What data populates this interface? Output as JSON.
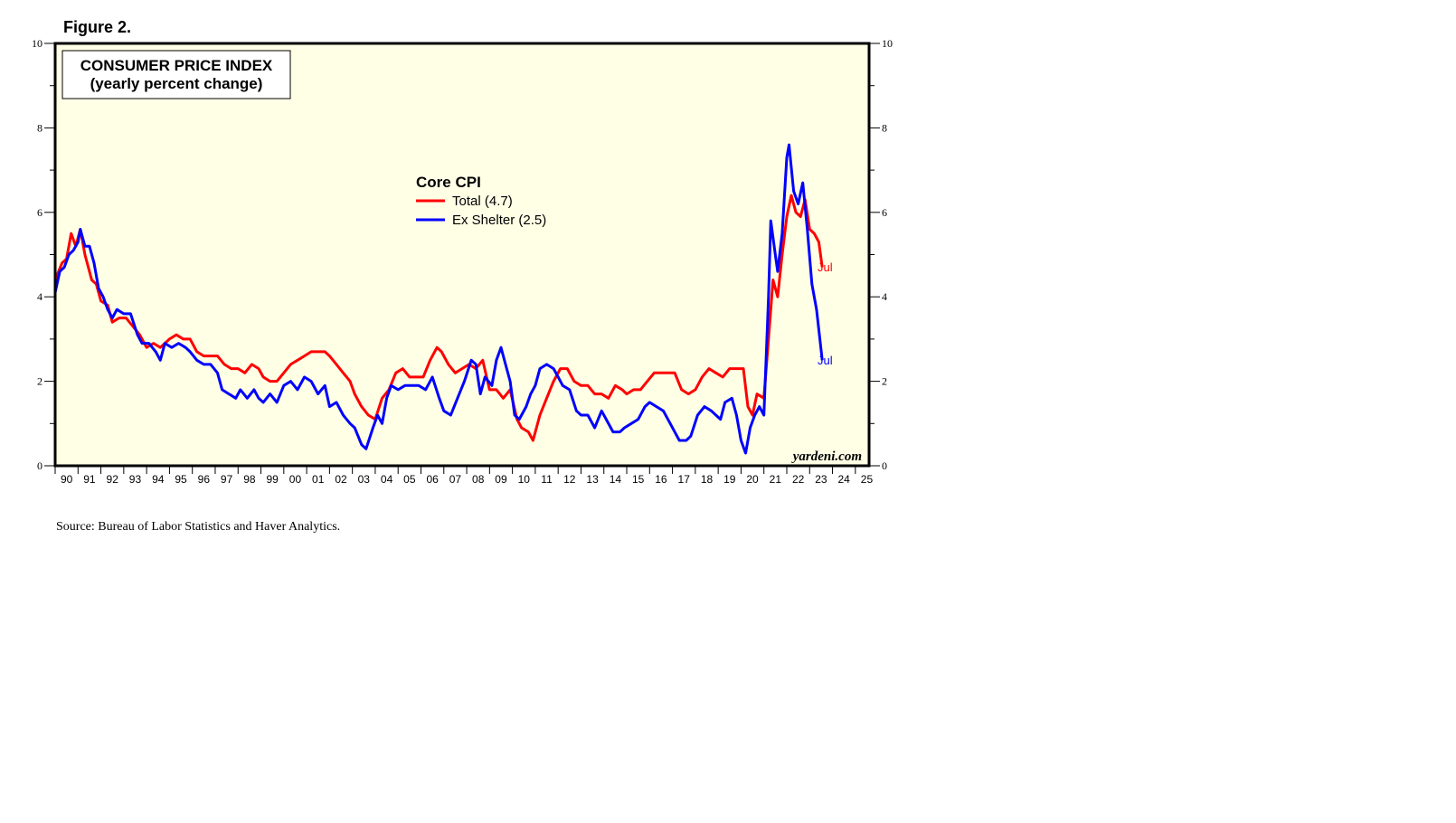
{
  "figure_label": "Figure 2.",
  "source": "Source: Bureau of Labor Statistics and Haver Analytics.",
  "watermark": "yardeni.com",
  "colors": {
    "plot_bg": "#ffffe6",
    "total": "#ff0000",
    "ex_shelter": "#0000ff"
  },
  "chart_data": {
    "type": "line",
    "title": "CONSUMER PRICE INDEX",
    "subtitle": "(yearly percent change)",
    "legend_title": "Core CPI",
    "legend_position": "top-center",
    "ylim": [
      0,
      10
    ],
    "y_ticks": [
      "0",
      "2",
      "4",
      "6",
      "8",
      "10"
    ],
    "xlim": [
      1990,
      2025.6
    ],
    "x_tick_labels": [
      "90",
      "91",
      "92",
      "93",
      "94",
      "95",
      "96",
      "97",
      "98",
      "99",
      "00",
      "01",
      "02",
      "03",
      "04",
      "05",
      "06",
      "07",
      "08",
      "09",
      "10",
      "11",
      "12",
      "13",
      "14",
      "15",
      "16",
      "17",
      "18",
      "19",
      "20",
      "21",
      "22",
      "23",
      "24",
      "25"
    ],
    "grid": false,
    "series": [
      {
        "name": "Total (4.7)",
        "end_label": "Jul",
        "color": "#ff0000",
        "points": [
          [
            1990.0,
            4.4
          ],
          [
            1990.3,
            4.8
          ],
          [
            1990.5,
            4.9
          ],
          [
            1990.7,
            5.5
          ],
          [
            1990.9,
            5.2
          ],
          [
            1991.1,
            5.6
          ],
          [
            1991.3,
            5.0
          ],
          [
            1991.6,
            4.4
          ],
          [
            1991.8,
            4.3
          ],
          [
            1992.0,
            3.9
          ],
          [
            1992.3,
            3.8
          ],
          [
            1992.5,
            3.4
          ],
          [
            1992.8,
            3.5
          ],
          [
            1993.1,
            3.5
          ],
          [
            1993.4,
            3.3
          ],
          [
            1993.7,
            3.1
          ],
          [
            1994.0,
            2.8
          ],
          [
            1994.3,
            2.9
          ],
          [
            1994.6,
            2.8
          ],
          [
            1994.8,
            2.9
          ],
          [
            1995.0,
            3.0
          ],
          [
            1995.3,
            3.1
          ],
          [
            1995.6,
            3.0
          ],
          [
            1995.9,
            3.0
          ],
          [
            1996.2,
            2.7
          ],
          [
            1996.5,
            2.6
          ],
          [
            1996.8,
            2.6
          ],
          [
            1997.1,
            2.6
          ],
          [
            1997.4,
            2.4
          ],
          [
            1997.7,
            2.3
          ],
          [
            1998.0,
            2.3
          ],
          [
            1998.3,
            2.2
          ],
          [
            1998.6,
            2.4
          ],
          [
            1998.9,
            2.3
          ],
          [
            1999.1,
            2.1
          ],
          [
            1999.4,
            2.0
          ],
          [
            1999.7,
            2.0
          ],
          [
            2000.0,
            2.2
          ],
          [
            2000.3,
            2.4
          ],
          [
            2000.6,
            2.5
          ],
          [
            2000.9,
            2.6
          ],
          [
            2001.2,
            2.7
          ],
          [
            2001.5,
            2.7
          ],
          [
            2001.8,
            2.7
          ],
          [
            2002.0,
            2.6
          ],
          [
            2002.3,
            2.4
          ],
          [
            2002.6,
            2.2
          ],
          [
            2002.9,
            2.0
          ],
          [
            2003.1,
            1.7
          ],
          [
            2003.4,
            1.4
          ],
          [
            2003.7,
            1.2
          ],
          [
            2004.0,
            1.1
          ],
          [
            2004.3,
            1.6
          ],
          [
            2004.6,
            1.8
          ],
          [
            2004.9,
            2.2
          ],
          [
            2005.2,
            2.3
          ],
          [
            2005.5,
            2.1
          ],
          [
            2005.8,
            2.1
          ],
          [
            2006.1,
            2.1
          ],
          [
            2006.4,
            2.5
          ],
          [
            2006.7,
            2.8
          ],
          [
            2006.9,
            2.7
          ],
          [
            2007.2,
            2.4
          ],
          [
            2007.5,
            2.2
          ],
          [
            2007.8,
            2.3
          ],
          [
            2008.1,
            2.4
          ],
          [
            2008.4,
            2.3
          ],
          [
            2008.7,
            2.5
          ],
          [
            2009.0,
            1.8
          ],
          [
            2009.3,
            1.8
          ],
          [
            2009.6,
            1.6
          ],
          [
            2009.9,
            1.8
          ],
          [
            2010.2,
            1.1
          ],
          [
            2010.4,
            0.9
          ],
          [
            2010.7,
            0.8
          ],
          [
            2010.9,
            0.6
          ],
          [
            2011.2,
            1.2
          ],
          [
            2011.5,
            1.6
          ],
          [
            2011.8,
            2.0
          ],
          [
            2012.1,
            2.3
          ],
          [
            2012.4,
            2.3
          ],
          [
            2012.7,
            2.0
          ],
          [
            2013.0,
            1.9
          ],
          [
            2013.3,
            1.9
          ],
          [
            2013.6,
            1.7
          ],
          [
            2013.9,
            1.7
          ],
          [
            2014.2,
            1.6
          ],
          [
            2014.5,
            1.9
          ],
          [
            2014.8,
            1.8
          ],
          [
            2015.0,
            1.7
          ],
          [
            2015.3,
            1.8
          ],
          [
            2015.6,
            1.8
          ],
          [
            2015.9,
            2.0
          ],
          [
            2016.2,
            2.2
          ],
          [
            2016.5,
            2.2
          ],
          [
            2016.8,
            2.2
          ],
          [
            2017.1,
            2.2
          ],
          [
            2017.4,
            1.8
          ],
          [
            2017.7,
            1.7
          ],
          [
            2018.0,
            1.8
          ],
          [
            2018.3,
            2.1
          ],
          [
            2018.6,
            2.3
          ],
          [
            2018.9,
            2.2
          ],
          [
            2019.2,
            2.1
          ],
          [
            2019.5,
            2.3
          ],
          [
            2019.8,
            2.3
          ],
          [
            2020.1,
            2.3
          ],
          [
            2020.3,
            1.4
          ],
          [
            2020.5,
            1.2
          ],
          [
            2020.7,
            1.7
          ],
          [
            2021.0,
            1.6
          ],
          [
            2021.2,
            3.0
          ],
          [
            2021.4,
            4.4
          ],
          [
            2021.6,
            4.0
          ],
          [
            2021.8,
            5.0
          ],
          [
            2022.0,
            5.9
          ],
          [
            2022.2,
            6.4
          ],
          [
            2022.4,
            6.0
          ],
          [
            2022.6,
            5.9
          ],
          [
            2022.8,
            6.3
          ],
          [
            2023.0,
            5.6
          ],
          [
            2023.2,
            5.5
          ],
          [
            2023.4,
            5.3
          ],
          [
            2023.55,
            4.7
          ]
        ]
      },
      {
        "name": "Ex Shelter (2.5)",
        "end_label": "Jul",
        "color": "#0000ff",
        "points": [
          [
            1990.0,
            4.1
          ],
          [
            1990.2,
            4.6
          ],
          [
            1990.4,
            4.7
          ],
          [
            1990.6,
            5.0
          ],
          [
            1990.8,
            5.1
          ],
          [
            1991.0,
            5.3
          ],
          [
            1991.1,
            5.6
          ],
          [
            1991.3,
            5.2
          ],
          [
            1991.5,
            5.2
          ],
          [
            1991.7,
            4.8
          ],
          [
            1991.9,
            4.2
          ],
          [
            1992.1,
            4.0
          ],
          [
            1992.3,
            3.7
          ],
          [
            1992.5,
            3.5
          ],
          [
            1992.7,
            3.7
          ],
          [
            1993.0,
            3.6
          ],
          [
            1993.3,
            3.6
          ],
          [
            1993.6,
            3.1
          ],
          [
            1993.8,
            2.9
          ],
          [
            1994.1,
            2.9
          ],
          [
            1994.4,
            2.7
          ],
          [
            1994.6,
            2.5
          ],
          [
            1994.8,
            2.9
          ],
          [
            1995.1,
            2.8
          ],
          [
            1995.4,
            2.9
          ],
          [
            1995.7,
            2.8
          ],
          [
            1995.9,
            2.7
          ],
          [
            1996.2,
            2.5
          ],
          [
            1996.5,
            2.4
          ],
          [
            1996.8,
            2.4
          ],
          [
            1997.1,
            2.2
          ],
          [
            1997.3,
            1.8
          ],
          [
            1997.6,
            1.7
          ],
          [
            1997.9,
            1.6
          ],
          [
            1998.1,
            1.8
          ],
          [
            1998.4,
            1.6
          ],
          [
            1998.7,
            1.8
          ],
          [
            1998.9,
            1.6
          ],
          [
            1999.1,
            1.5
          ],
          [
            1999.4,
            1.7
          ],
          [
            1999.7,
            1.5
          ],
          [
            2000.0,
            1.9
          ],
          [
            2000.3,
            2.0
          ],
          [
            2000.6,
            1.8
          ],
          [
            2000.9,
            2.1
          ],
          [
            2001.2,
            2.0
          ],
          [
            2001.5,
            1.7
          ],
          [
            2001.8,
            1.9
          ],
          [
            2002.0,
            1.4
          ],
          [
            2002.3,
            1.5
          ],
          [
            2002.6,
            1.2
          ],
          [
            2002.9,
            1.0
          ],
          [
            2003.1,
            0.9
          ],
          [
            2003.4,
            0.5
          ],
          [
            2003.6,
            0.4
          ],
          [
            2003.9,
            0.9
          ],
          [
            2004.1,
            1.2
          ],
          [
            2004.3,
            1.0
          ],
          [
            2004.5,
            1.6
          ],
          [
            2004.7,
            1.9
          ],
          [
            2005.0,
            1.8
          ],
          [
            2005.3,
            1.9
          ],
          [
            2005.6,
            1.9
          ],
          [
            2005.9,
            1.9
          ],
          [
            2006.2,
            1.8
          ],
          [
            2006.5,
            2.1
          ],
          [
            2006.8,
            1.6
          ],
          [
            2007.0,
            1.3
          ],
          [
            2007.3,
            1.2
          ],
          [
            2007.6,
            1.6
          ],
          [
            2007.9,
            2.0
          ],
          [
            2008.2,
            2.5
          ],
          [
            2008.4,
            2.4
          ],
          [
            2008.6,
            1.7
          ],
          [
            2008.8,
            2.1
          ],
          [
            2009.1,
            1.9
          ],
          [
            2009.3,
            2.5
          ],
          [
            2009.5,
            2.8
          ],
          [
            2009.7,
            2.4
          ],
          [
            2009.9,
            2.0
          ],
          [
            2010.1,
            1.2
          ],
          [
            2010.3,
            1.1
          ],
          [
            2010.6,
            1.4
          ],
          [
            2010.8,
            1.7
          ],
          [
            2011.0,
            1.9
          ],
          [
            2011.2,
            2.3
          ],
          [
            2011.5,
            2.4
          ],
          [
            2011.8,
            2.3
          ],
          [
            2012.0,
            2.1
          ],
          [
            2012.2,
            1.9
          ],
          [
            2012.5,
            1.8
          ],
          [
            2012.8,
            1.3
          ],
          [
            2013.0,
            1.2
          ],
          [
            2013.3,
            1.2
          ],
          [
            2013.6,
            0.9
          ],
          [
            2013.9,
            1.3
          ],
          [
            2014.1,
            1.1
          ],
          [
            2014.4,
            0.8
          ],
          [
            2014.7,
            0.8
          ],
          [
            2014.9,
            0.9
          ],
          [
            2015.2,
            1.0
          ],
          [
            2015.5,
            1.1
          ],
          [
            2015.8,
            1.4
          ],
          [
            2016.0,
            1.5
          ],
          [
            2016.3,
            1.4
          ],
          [
            2016.6,
            1.3
          ],
          [
            2016.9,
            1.0
          ],
          [
            2017.1,
            0.8
          ],
          [
            2017.3,
            0.6
          ],
          [
            2017.6,
            0.6
          ],
          [
            2017.8,
            0.7
          ],
          [
            2018.1,
            1.2
          ],
          [
            2018.4,
            1.4
          ],
          [
            2018.7,
            1.3
          ],
          [
            2018.9,
            1.2
          ],
          [
            2019.1,
            1.1
          ],
          [
            2019.3,
            1.5
          ],
          [
            2019.6,
            1.6
          ],
          [
            2019.8,
            1.2
          ],
          [
            2020.0,
            0.6
          ],
          [
            2020.2,
            0.3
          ],
          [
            2020.4,
            0.9
          ],
          [
            2020.6,
            1.2
          ],
          [
            2020.8,
            1.4
          ],
          [
            2021.0,
            1.2
          ],
          [
            2021.2,
            4.0
          ],
          [
            2021.3,
            5.8
          ],
          [
            2021.5,
            5.0
          ],
          [
            2021.6,
            4.6
          ],
          [
            2021.8,
            5.5
          ],
          [
            2022.0,
            7.3
          ],
          [
            2022.1,
            7.6
          ],
          [
            2022.3,
            6.5
          ],
          [
            2022.5,
            6.2
          ],
          [
            2022.7,
            6.7
          ],
          [
            2022.9,
            5.6
          ],
          [
            2023.1,
            4.3
          ],
          [
            2023.3,
            3.7
          ],
          [
            2023.45,
            3.0
          ],
          [
            2023.55,
            2.5
          ]
        ]
      }
    ]
  }
}
